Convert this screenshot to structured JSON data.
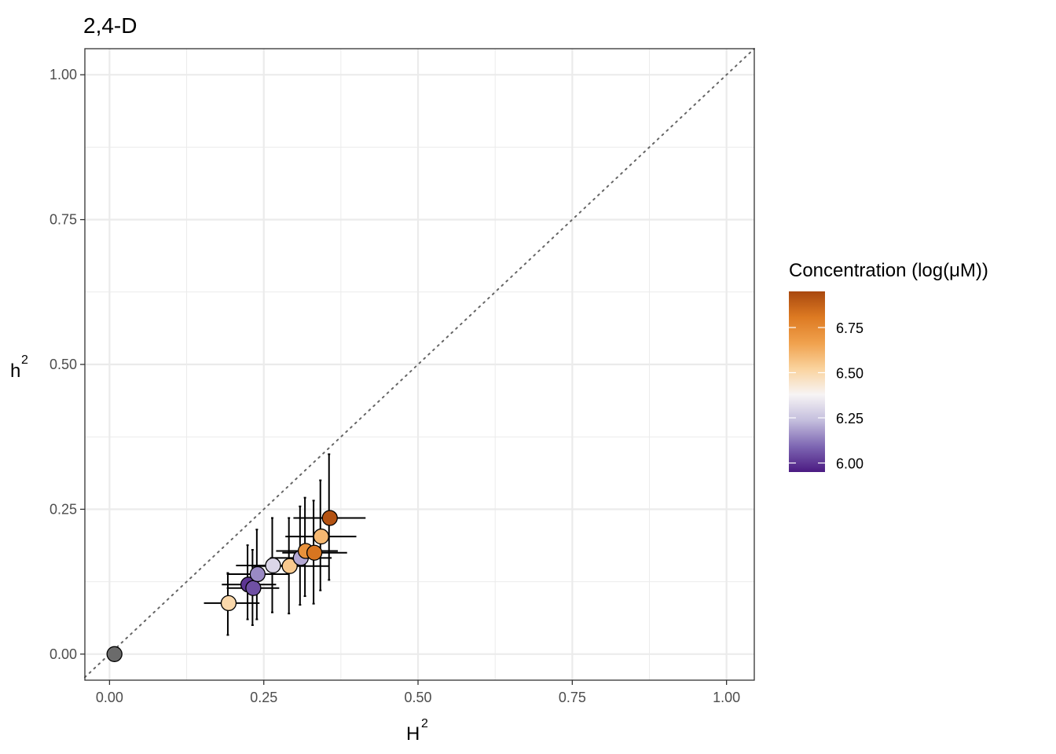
{
  "chart_data": {
    "type": "scatter",
    "title": "2,4-D",
    "xlabel": {
      "base": "H",
      "sup": "2"
    },
    "ylabel": {
      "base": "h",
      "sup": "2"
    },
    "xlim": [
      -0.04,
      1.045
    ],
    "ylim": [
      -0.045,
      1.045
    ],
    "x_ticks": [
      0.0,
      0.25,
      0.5,
      0.75,
      1.0
    ],
    "x_tick_labels": [
      "0.00",
      "0.25",
      "0.50",
      "0.75",
      "1.00"
    ],
    "y_ticks": [
      0.0,
      0.25,
      0.5,
      0.75,
      1.0
    ],
    "y_tick_labels": [
      "0.00",
      "0.25",
      "0.50",
      "0.75",
      "1.00"
    ],
    "grid": true,
    "reference_line": {
      "type": "identity",
      "style": "dotted",
      "color": "#666666"
    },
    "colorbar": {
      "title": "Concentration (log(μM))",
      "range": [
        5.95,
        6.95
      ],
      "ticks": [
        6.0,
        6.25,
        6.5,
        6.75
      ],
      "tick_labels": [
        "6.00",
        "6.25",
        "6.50",
        "6.75"
      ],
      "stops": [
        "#4b1a82",
        "#7e67b3",
        "#c4bedd",
        "#f7f4f5",
        "#fad39e",
        "#f0a14d",
        "#dd7a22",
        "#a9480f"
      ],
      "placement": "right"
    },
    "missing_color": "#6b6b6b",
    "points": [
      {
        "x": 0.008,
        "y": 0.0,
        "xerr": [
          0.008,
          0.008
        ],
        "yerr": [
          0.0,
          0.0
        ],
        "conc": null
      },
      {
        "x": 0.193,
        "y": 0.088,
        "xerr": [
          0.153,
          0.243
        ],
        "yerr": [
          0.033,
          0.14
        ],
        "conc": 6.5
      },
      {
        "x": 0.225,
        "y": 0.12,
        "xerr": [
          0.182,
          0.27
        ],
        "yerr": [
          0.06,
          0.188
        ],
        "conc": 6.0
      },
      {
        "x": 0.233,
        "y": 0.114,
        "xerr": [
          0.19,
          0.275
        ],
        "yerr": [
          0.05,
          0.18
        ],
        "conc": 6.05
      },
      {
        "x": 0.24,
        "y": 0.138,
        "xerr": [
          0.19,
          0.29
        ],
        "yerr": [
          0.06,
          0.215
        ],
        "conc": 6.15
      },
      {
        "x": 0.265,
        "y": 0.153,
        "xerr": [
          0.205,
          0.315
        ],
        "yerr": [
          0.072,
          0.235
        ],
        "conc": 6.3
      },
      {
        "x": 0.292,
        "y": 0.152,
        "xerr": [
          0.23,
          0.355
        ],
        "yerr": [
          0.07,
          0.235
        ],
        "conc": 6.55
      },
      {
        "x": 0.31,
        "y": 0.166,
        "xerr": [
          0.26,
          0.36
        ],
        "yerr": [
          0.085,
          0.255
        ],
        "conc": 6.2
      },
      {
        "x": 0.318,
        "y": 0.178,
        "xerr": [
          0.27,
          0.37
        ],
        "yerr": [
          0.1,
          0.27
        ],
        "conc": 6.72
      },
      {
        "x": 0.332,
        "y": 0.175,
        "xerr": [
          0.28,
          0.385
        ],
        "yerr": [
          0.087,
          0.265
        ],
        "conc": 6.82
      },
      {
        "x": 0.343,
        "y": 0.203,
        "xerr": [
          0.285,
          0.4
        ],
        "yerr": [
          0.11,
          0.3
        ],
        "conc": 6.6
      },
      {
        "x": 0.357,
        "y": 0.235,
        "xerr": [
          0.298,
          0.415
        ],
        "yerr": [
          0.128,
          0.345
        ],
        "conc": 6.92
      }
    ]
  }
}
